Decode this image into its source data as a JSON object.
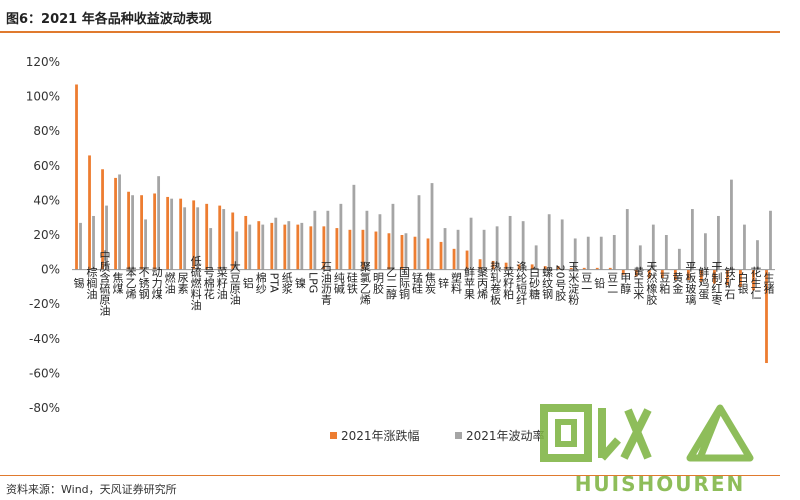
{
  "header": {
    "title": "图6：2021 年各品种收益波动表现"
  },
  "footer": {
    "source": "资料来源：Wind，天风证券研究所"
  },
  "watermark": {
    "text": "HUISHOUREN"
  },
  "colors": {
    "rise": "#ED7D31",
    "vol": "#A5A5A5",
    "rule": "#E07A2E"
  },
  "chart_data": {
    "type": "bar",
    "title": "",
    "xlabel": "",
    "ylabel": "",
    "ylim": [
      -80,
      120
    ],
    "yticks": [
      "120%",
      "100%",
      "80%",
      "60%",
      "40%",
      "20%",
      "0%",
      "-20%",
      "-40%",
      "-60%",
      "-80%"
    ],
    "legend_position": "bottom",
    "grid": false,
    "categories": [
      "锡",
      "棕榈油",
      "中质含硫原油",
      "焦煤",
      "苯乙烯",
      "不锈钢",
      "动力煤",
      "燃油",
      "尿素",
      "低硫燃料油",
      "号棉花",
      "菜籽油",
      "大豆原油",
      "铝",
      "棉纱",
      "PTA",
      "纸浆",
      "镍",
      "LPG",
      "石油沥青",
      "纯碱",
      "硅铁",
      "聚氯乙烯",
      "明胶",
      "乙二醇",
      "国际铜",
      "锰硅",
      "焦炭",
      "锌",
      "塑料",
      "鲜苹果",
      "聚丙烯",
      "热轧卷板",
      "菜籽粕",
      "涤纶短纤",
      "白砂糖",
      "螺纹钢",
      "20号胶",
      "玉米淀粉",
      "豆一",
      "铅",
      "豆二",
      "甲醇",
      "黄玉米",
      "天然橡胶",
      "豆粕",
      "黄金",
      "平板玻璃",
      "鲜鸡蛋",
      "干制红枣",
      "铁矿石",
      "白银",
      "花生仁",
      "生猪"
    ],
    "series": [
      {
        "name": "2021年涨跌幅",
        "values": [
          107,
          66,
          58,
          53,
          45,
          43,
          44,
          42,
          41,
          40,
          38,
          37,
          33,
          31,
          28,
          27,
          26,
          26,
          25,
          25,
          24,
          23,
          23,
          22,
          21,
          20,
          19,
          18,
          16,
          12,
          11,
          6,
          5,
          4,
          3,
          3,
          2,
          2,
          1,
          1,
          1,
          1,
          -3,
          -4,
          -5,
          -5,
          -6,
          -6,
          -7,
          -8,
          -9,
          -10,
          -12,
          -54
        ]
      },
      {
        "name": "2021年波动率",
        "values": [
          27,
          31,
          37,
          55,
          43,
          29,
          54,
          41,
          36,
          36,
          24,
          35,
          22,
          26,
          26,
          30,
          28,
          27,
          34,
          34,
          38,
          49,
          34,
          32,
          38,
          21,
          43,
          50,
          24,
          23,
          30,
          23,
          25,
          31,
          28,
          14,
          32,
          29,
          18,
          19,
          19,
          20,
          35,
          14,
          26,
          20,
          12,
          35,
          21,
          31,
          52,
          26,
          17,
          34
        ]
      }
    ]
  }
}
